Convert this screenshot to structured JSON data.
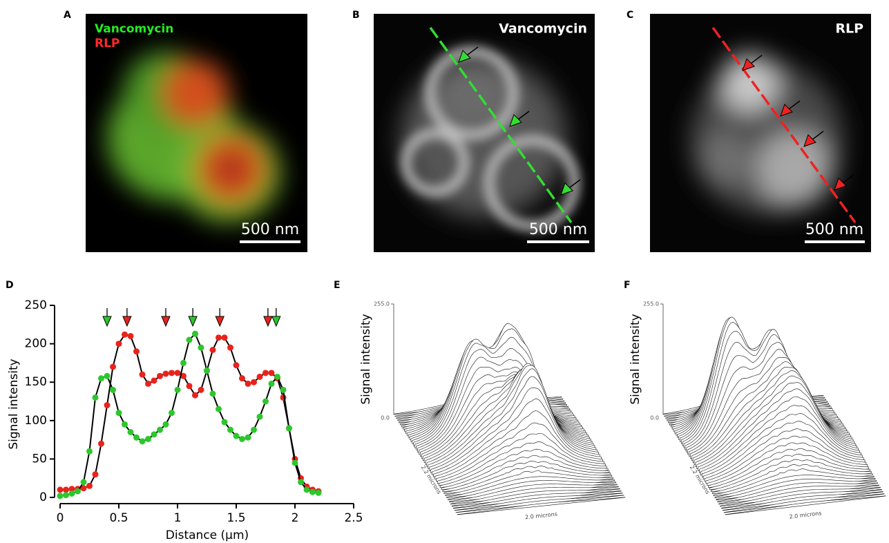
{
  "panels": {
    "A": {
      "label": "A",
      "channels": [
        "Vancomycin",
        "RLP"
      ],
      "scale_bar": "500 nm"
    },
    "B": {
      "label": "B",
      "channel": "Vancomycin",
      "scale_bar": "500 nm"
    },
    "C": {
      "label": "C",
      "channel": "RLP",
      "scale_bar": "500 nm"
    },
    "D": {
      "label": "D"
    },
    "E": {
      "label": "E",
      "y_label": "Signal intensity",
      "z_top": "255.0",
      "z_bottom": "0.0",
      "depth_label": "2.2 microns",
      "width_label": "2.0 microns"
    },
    "F": {
      "label": "F",
      "y_label": "Signal intensity",
      "z_top": "255.0",
      "z_bottom": "0.0",
      "depth_label": "2.2 microns",
      "width_label": "2.0 microns"
    }
  },
  "chart_data": {
    "type": "line",
    "x_label": "Distance (μm)",
    "y_label": "Signal intensity",
    "x": [
      0,
      0.05,
      0.1,
      0.15,
      0.2,
      0.25,
      0.3,
      0.35,
      0.4,
      0.45,
      0.5,
      0.55,
      0.6,
      0.65,
      0.7,
      0.75,
      0.8,
      0.85,
      0.9,
      0.95,
      1,
      1.05,
      1.1,
      1.15,
      1.2,
      1.25,
      1.3,
      1.35,
      1.4,
      1.45,
      1.5,
      1.55,
      1.6,
      1.65,
      1.7,
      1.75,
      1.8,
      1.85,
      1.9,
      1.95,
      2,
      2.05,
      2.1,
      2.15,
      2.2
    ],
    "series": [
      {
        "color": "#e8231d",
        "values": [
          10,
          10,
          11,
          11,
          12,
          15,
          30,
          70,
          120,
          170,
          200,
          212,
          210,
          190,
          160,
          148,
          152,
          158,
          161,
          162,
          162,
          158,
          145,
          133,
          140,
          165,
          192,
          208,
          208,
          195,
          172,
          155,
          148,
          150,
          157,
          162,
          162,
          155,
          130,
          90,
          50,
          25,
          14,
          10,
          8
        ]
      },
      {
        "color": "#2cc72c",
        "values": [
          2,
          3,
          5,
          8,
          20,
          60,
          130,
          155,
          158,
          140,
          110,
          95,
          85,
          78,
          73,
          76,
          82,
          88,
          95,
          110,
          140,
          175,
          205,
          213,
          195,
          165,
          135,
          115,
          98,
          88,
          80,
          76,
          78,
          88,
          105,
          125,
          148,
          157,
          140,
          90,
          45,
          20,
          10,
          7,
          6
        ]
      }
    ],
    "markers": [
      {
        "x": 0.4,
        "color": "#2cc72c"
      },
      {
        "x": 0.57,
        "color": "#e8231d"
      },
      {
        "x": 0.9,
        "color": "#e8231d"
      },
      {
        "x": 1.13,
        "color": "#2cc72c"
      },
      {
        "x": 1.36,
        "color": "#e8231d"
      },
      {
        "x": 1.77,
        "color": "#e8231d"
      },
      {
        "x": 1.84,
        "color": "#2cc72c"
      }
    ],
    "xlim": [
      0,
      2.5
    ],
    "xticks": [
      0,
      0.5,
      1,
      1.5,
      2,
      2.5
    ],
    "ylim": [
      0,
      250
    ],
    "yticks": [
      0,
      50,
      100,
      150,
      200,
      250
    ]
  }
}
